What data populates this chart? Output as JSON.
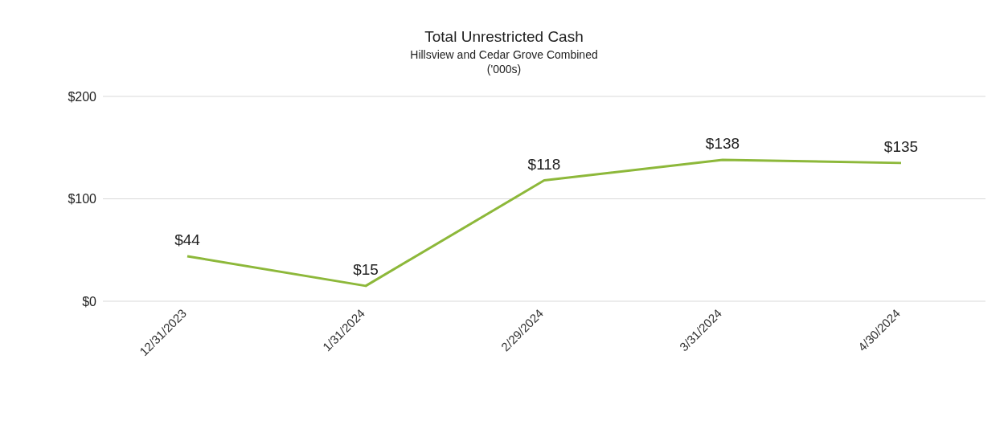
{
  "chart_data": {
    "type": "line",
    "title": "Total Unrestricted Cash",
    "subtitle": "Hillsview and Cedar Grove Combined\n('000s)",
    "categories": [
      "12/31/2023",
      "1/31/2024",
      "2/29/2024",
      "3/31/2024",
      "4/30/2024"
    ],
    "series": [
      {
        "color": "#8db83a",
        "values": [
          44,
          15,
          118,
          138,
          135
        ],
        "value_labels": [
          "$44",
          "$15",
          "$118",
          "$138",
          "$135"
        ]
      }
    ],
    "ylim": [
      0,
      200
    ],
    "yticks": [
      {
        "value": 0,
        "label": "$0"
      },
      {
        "value": 100,
        "label": "$100"
      },
      {
        "value": 200,
        "label": "$200"
      }
    ],
    "grid": "y",
    "marker": "none",
    "line_style": "solid"
  }
}
